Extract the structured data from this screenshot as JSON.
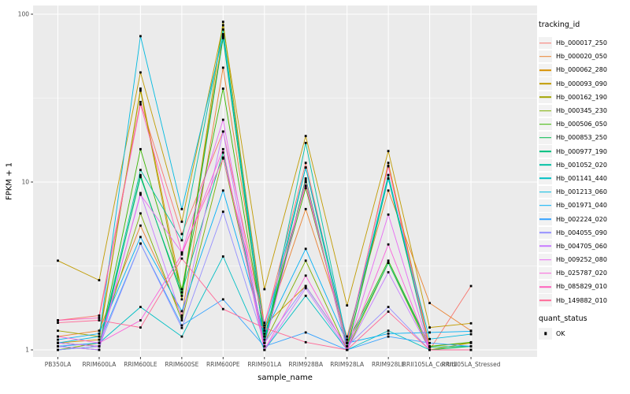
{
  "chart_data": {
    "type": "line",
    "xlabel": "sample_name",
    "ylabel": "FPKM + 1",
    "y_scale": "log10",
    "y_ticks": [
      1,
      10,
      100
    ],
    "y_minor_ticks": [
      3.1623,
      31.623
    ],
    "ylim": [
      1,
      100
    ],
    "grid": "white-on-gray",
    "legend_position": "right",
    "point_shape": "filled-square",
    "point_color": "#000000",
    "categories": [
      "PB350LA",
      "RRIM600LA",
      "RRIM600LE",
      "RRIM600SE",
      "RRIM600PE",
      "RRIM901LA",
      "RRIM928BA",
      "RRIM928LA",
      "RRIM928LE",
      "RRII105LA_Control",
      "RRII105LA_Stressed"
    ],
    "series": [
      {
        "name": "Hb_000017_250",
        "color": "#F8766D",
        "values": [
          1.5,
          1.6,
          30,
          4.9,
          20,
          1.4,
          13,
          1.1,
          12.5,
          1.0,
          2.4
        ]
      },
      {
        "name": "Hb_000020_050",
        "color": "#EA8331",
        "values": [
          1.2,
          1.3,
          5.5,
          1.6,
          48,
          1.3,
          6.9,
          1.2,
          8.9,
          1.9,
          1.3
        ]
      },
      {
        "name": "Hb_000062_280",
        "color": "#D89000",
        "values": [
          1.1,
          1.15,
          36,
          2.2,
          76,
          1.4,
          2.4,
          1.05,
          13,
          1.05,
          1.1
        ]
      },
      {
        "name": "Hb_000093_090",
        "color": "#C09B00",
        "values": [
          3.4,
          2.6,
          45,
          5.8,
          86,
          2.3,
          18.8,
          1.84,
          15.3,
          1.36,
          1.44
        ]
      },
      {
        "name": "Hb_000162_190",
        "color": "#A3A500",
        "values": [
          1.3,
          1.2,
          35,
          2.0,
          90,
          1.2,
          10,
          1.0,
          11,
          1.0,
          1.1
        ]
      },
      {
        "name": "Hb_000345_230",
        "color": "#7CAE00",
        "values": [
          1.0,
          1.1,
          6.5,
          1.5,
          14,
          1.1,
          3.4,
          1.0,
          3.3,
          1.0,
          1.0
        ]
      },
      {
        "name": "Hb_000506_050",
        "color": "#39B600",
        "values": [
          1.1,
          1.05,
          15.7,
          2.3,
          36,
          1.2,
          9.2,
          1.1,
          3.4,
          1.05,
          1.11
        ]
      },
      {
        "name": "Hb_000853_250",
        "color": "#00BB4E",
        "values": [
          1.05,
          1.0,
          11,
          2.1,
          72,
          1.1,
          10.5,
          1.0,
          10.5,
          1.0,
          1.05
        ]
      },
      {
        "name": "Hb_000977_190",
        "color": "#00BF7D",
        "values": [
          1.1,
          1.05,
          10.7,
          2.2,
          15,
          1.15,
          12.2,
          1.05,
          3.3,
          1.04,
          1.05
        ]
      },
      {
        "name": "Hb_001052_020",
        "color": "#00C1A3",
        "values": [
          1.0,
          1.05,
          11.8,
          4.5,
          81,
          1.1,
          17.1,
          1.1,
          11,
          1.0,
          1.0
        ]
      },
      {
        "name": "Hb_001141_440",
        "color": "#00BFC4",
        "values": [
          1.05,
          1.1,
          1.8,
          1.2,
          3.6,
          1.0,
          2.1,
          1.0,
          1.3,
          1.0,
          1.0
        ]
      },
      {
        "name": "Hb_001213_060",
        "color": "#00BAE0",
        "values": [
          1.1,
          1.2,
          74,
          6.9,
          74,
          1.3,
          12.2,
          1.15,
          10.5,
          1.16,
          1.24
        ]
      },
      {
        "name": "Hb_001971_040",
        "color": "#00B0F6",
        "values": [
          1.15,
          1.25,
          4.7,
          1.7,
          8.9,
          1.25,
          4.0,
          1.1,
          1.25,
          1.27,
          1.29
        ]
      },
      {
        "name": "Hb_002224_020",
        "color": "#35A2FF",
        "values": [
          1.05,
          1.1,
          4.3,
          1.4,
          2.0,
          1.05,
          1.27,
          1.0,
          1.2,
          1.1,
          1.05
        ]
      },
      {
        "name": "Hb_004055_090",
        "color": "#9590FF",
        "values": [
          1.0,
          1.05,
          4.3,
          1.35,
          6.65,
          1.1,
          2.4,
          1.05,
          1.8,
          1.0,
          1.0
        ]
      },
      {
        "name": "Hb_004705_060",
        "color": "#C77CFF",
        "values": [
          1.05,
          1.0,
          8.6,
          1.55,
          20,
          1.0,
          2.33,
          1.0,
          2.9,
          1.0,
          1.0
        ]
      },
      {
        "name": "Hb_009252_080",
        "color": "#E76BF3",
        "values": [
          1.1,
          1.05,
          8.4,
          3.8,
          23.5,
          1.05,
          10.2,
          1.0,
          6.4,
          1.0,
          1.0
        ]
      },
      {
        "name": "Hb_025787_020",
        "color": "#FA62DB",
        "values": [
          1.2,
          1.1,
          1.5,
          3.7,
          15.7,
          1.0,
          2.77,
          1.0,
          4.25,
          1.0,
          1.0
        ]
      },
      {
        "name": "Hb_085829_010",
        "color": "#FF62BC",
        "values": [
          1.5,
          1.55,
          29,
          3.8,
          13.8,
          1.45,
          9.5,
          1.1,
          12.4,
          1.0,
          1.0
        ]
      },
      {
        "name": "Hb_149882_010",
        "color": "#FF6A98",
        "values": [
          1.45,
          1.5,
          1.36,
          3.5,
          1.75,
          1.35,
          1.11,
          1.0,
          1.69,
          1.0,
          1.0
        ]
      }
    ]
  },
  "legend": {
    "tracking_title": "tracking_id",
    "quant_title": "quant_status",
    "quant_label": "OK"
  },
  "colors": {
    "panel_bg": "#EBEBEB",
    "grid": "#FFFFFF",
    "axis_text": "#4D4D4D",
    "tick_mark": "#333333",
    "text": "#000000",
    "legend_key_bg": "#F2F2F2"
  }
}
